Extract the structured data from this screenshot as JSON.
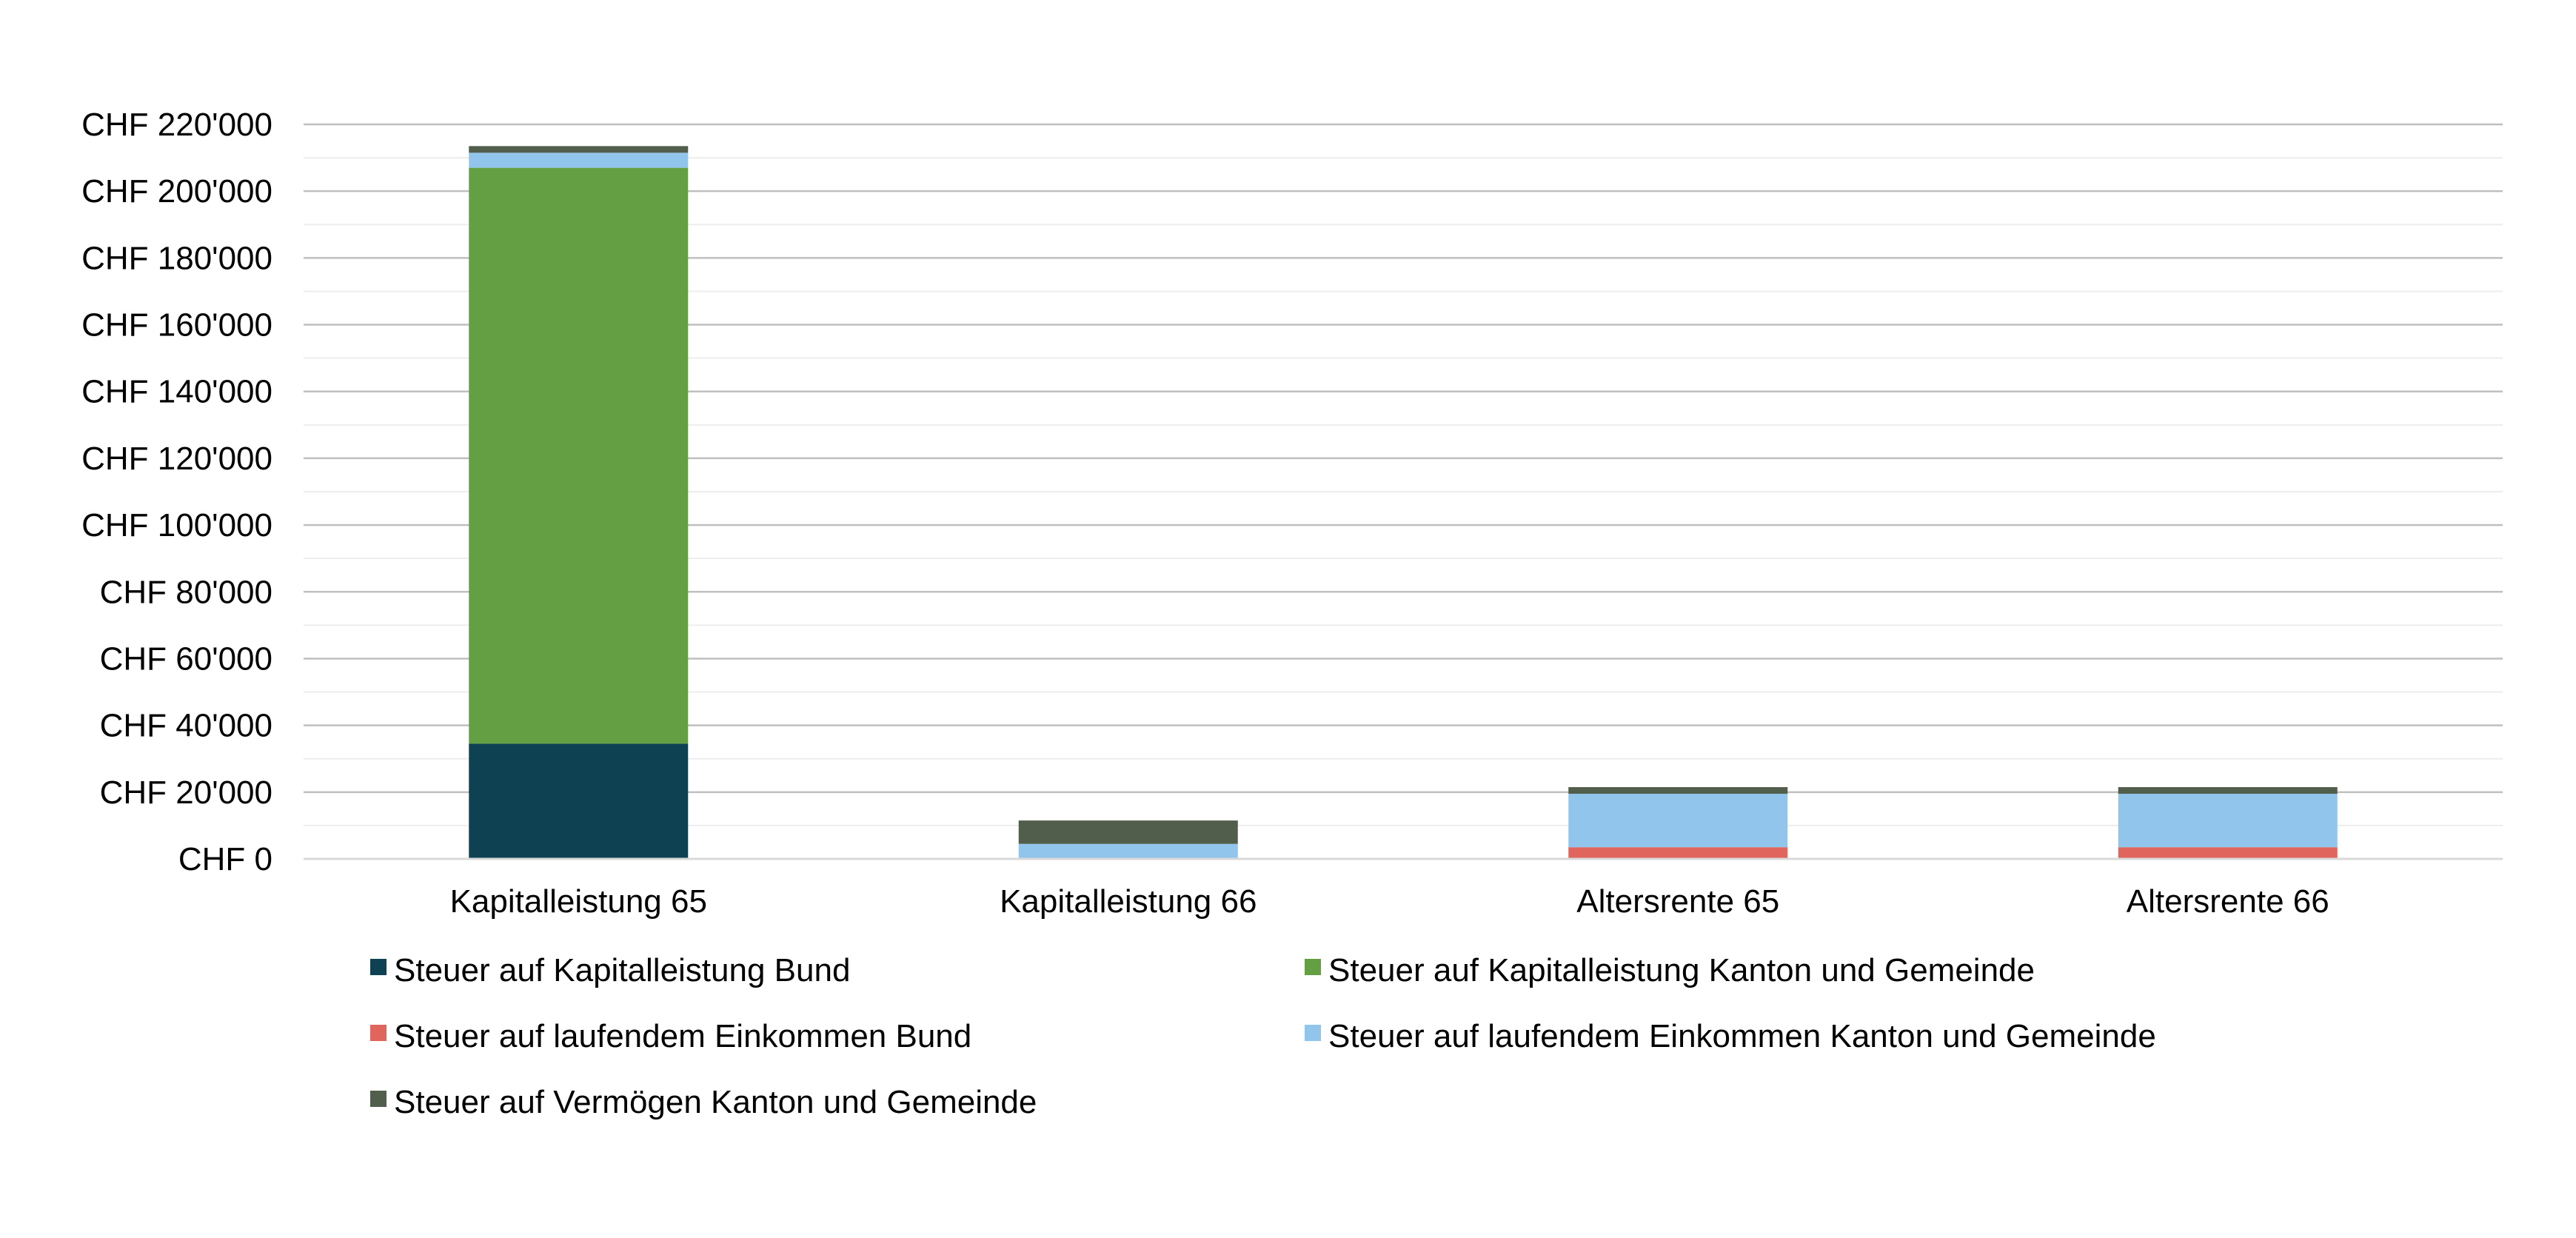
{
  "chart_data": {
    "type": "bar",
    "stacked": true,
    "categories": [
      "Kapitalleistung 65",
      "Kapitalleistung 66",
      "Altersrente 65",
      "Altersrente 66"
    ],
    "series": [
      {
        "name": "Steuer auf Kapitalleistung Bund",
        "color": "#0E4152",
        "values": [
          34500,
          0,
          0,
          0
        ]
      },
      {
        "name": "Steuer auf Kapitalleistung Kanton und Gemeinde",
        "color": "#64A043",
        "values": [
          172500,
          0,
          0,
          0
        ]
      },
      {
        "name": "Steuer auf laufendem Einkommen Bund",
        "color": "#E0655C",
        "values": [
          0,
          0,
          3500,
          3500
        ]
      },
      {
        "name": "Steuer auf laufendem Einkommen Kanton und Gemeinde",
        "color": "#91C5EC",
        "values": [
          4500,
          4500,
          16000,
          16000
        ]
      },
      {
        "name": "Steuer auf Vermögen Kanton und Gemeinde",
        "color": "#525E4C",
        "values": [
          2000,
          7000,
          2000,
          2000
        ]
      }
    ],
    "yaxis": {
      "min": 0,
      "max": 220000,
      "major_step": 20000,
      "minor_step": 10000,
      "tick_labels": [
        "CHF 0",
        "CHF 20'000",
        "CHF 40'000",
        "CHF 60'000",
        "CHF 80'000",
        "CHF 100'000",
        "CHF 120'000",
        "CHF 140'000",
        "CHF 160'000",
        "CHF 180'000",
        "CHF 200'000",
        "CHF 220'000"
      ]
    },
    "title": "",
    "xlabel": "",
    "ylabel": "",
    "grid": true,
    "legend_position": "bottom",
    "colors": {
      "major_grid": "#BFBFBF",
      "minor_grid": "#EDEDED",
      "axis": "#D9D9D9"
    }
  }
}
